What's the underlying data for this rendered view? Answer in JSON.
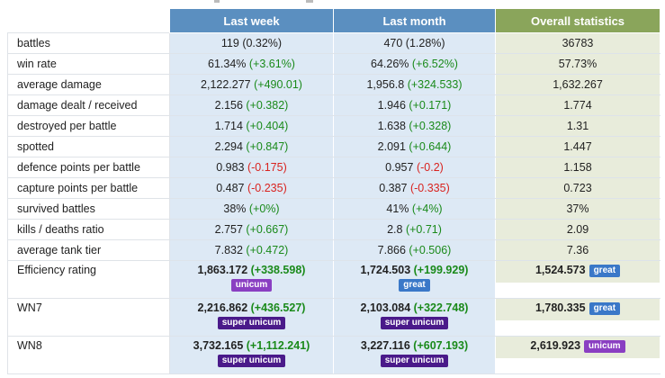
{
  "header": {
    "col1": "Last week",
    "col2": "Last month",
    "col3": "Overall statistics"
  },
  "rows": [
    {
      "label": "battles",
      "c1": "119",
      "c1d": "(0.32%)",
      "c1dt": "plain",
      "c2": "470",
      "c2d": "(1.28%)",
      "c2dt": "plain",
      "c3": "36783"
    },
    {
      "label": "win rate",
      "c1": "61.34%",
      "c1d": "(+3.61%)",
      "c1dt": "pos",
      "c2": "64.26%",
      "c2d": "(+6.52%)",
      "c2dt": "pos",
      "c3": "57.73%"
    },
    {
      "label": "average damage",
      "c1": "2,122.277",
      "c1d": "(+490.01)",
      "c1dt": "pos",
      "c2": "1,956.8",
      "c2d": "(+324.533)",
      "c2dt": "pos",
      "c3": "1,632.267"
    },
    {
      "label": "damage dealt / received",
      "c1": "2.156",
      "c1d": "(+0.382)",
      "c1dt": "pos",
      "c2": "1.946",
      "c2d": "(+0.171)",
      "c2dt": "pos",
      "c3": "1.774"
    },
    {
      "label": "destroyed per battle",
      "c1": "1.714",
      "c1d": "(+0.404)",
      "c1dt": "pos",
      "c2": "1.638",
      "c2d": "(+0.328)",
      "c2dt": "pos",
      "c3": "1.31"
    },
    {
      "label": "spotted",
      "c1": "2.294",
      "c1d": "(+0.847)",
      "c1dt": "pos",
      "c2": "2.091",
      "c2d": "(+0.644)",
      "c2dt": "pos",
      "c3": "1.447"
    },
    {
      "label": "defence points per battle",
      "c1": "0.983",
      "c1d": "(-0.175)",
      "c1dt": "neg",
      "c2": "0.957",
      "c2d": "(-0.2)",
      "c2dt": "neg",
      "c3": "1.158"
    },
    {
      "label": "capture points per battle",
      "c1": "0.487",
      "c1d": "(-0.235)",
      "c1dt": "neg",
      "c2": "0.387",
      "c2d": "(-0.335)",
      "c2dt": "neg",
      "c3": "0.723"
    },
    {
      "label": "survived battles",
      "c1": "38%",
      "c1d": "(+0%)",
      "c1dt": "pos",
      "c2": "41%",
      "c2d": "(+4%)",
      "c2dt": "pos",
      "c3": "37%"
    },
    {
      "label": "kills / deaths ratio",
      "c1": "2.757",
      "c1d": "(+0.667)",
      "c1dt": "pos",
      "c2": "2.8",
      "c2d": "(+0.71)",
      "c2dt": "pos",
      "c3": "2.09"
    },
    {
      "label": "average tank tier",
      "c1": "7.832",
      "c1d": "(+0.472)",
      "c1dt": "pos",
      "c2": "7.866",
      "c2d": "(+0.506)",
      "c2dt": "pos",
      "c3": "7.36"
    }
  ],
  "ratings": [
    {
      "label": "Efficiency rating",
      "c1": "1,863.172",
      "c1d": "(+338.598)",
      "c1b": "unicum",
      "c1bt": "unicum",
      "c2": "1,724.503",
      "c2d": "(+199.929)",
      "c2b": "great",
      "c2bt": "great",
      "c3": "1,524.573",
      "c3b": "great",
      "c3bt": "great"
    },
    {
      "label": "WN7",
      "c1": "2,216.862",
      "c1d": "(+436.527)",
      "c1b": "super unicum",
      "c1bt": "super",
      "c2": "2,103.084",
      "c2d": "(+322.748)",
      "c2b": "super unicum",
      "c2bt": "super",
      "c3": "1,780.335",
      "c3b": "great",
      "c3bt": "great"
    },
    {
      "label": "WN8",
      "c1": "3,732.165",
      "c1d": "(+1,112.241)",
      "c1b": "super unicum",
      "c1bt": "super",
      "c2": "3,227.116",
      "c2d": "(+607.193)",
      "c2b": "super unicum",
      "c2bt": "super",
      "c3": "2,619.923",
      "c3b": "unicum",
      "c3bt": "unicum"
    }
  ],
  "colors": {
    "header_blue": "#5b8fc0",
    "header_green": "#8aa55b",
    "positive": "#1a8a1a",
    "negative": "#d9231f",
    "unicum": "#8a3fc2",
    "great": "#3a78c8",
    "super_unicum": "#4a1a8a"
  }
}
